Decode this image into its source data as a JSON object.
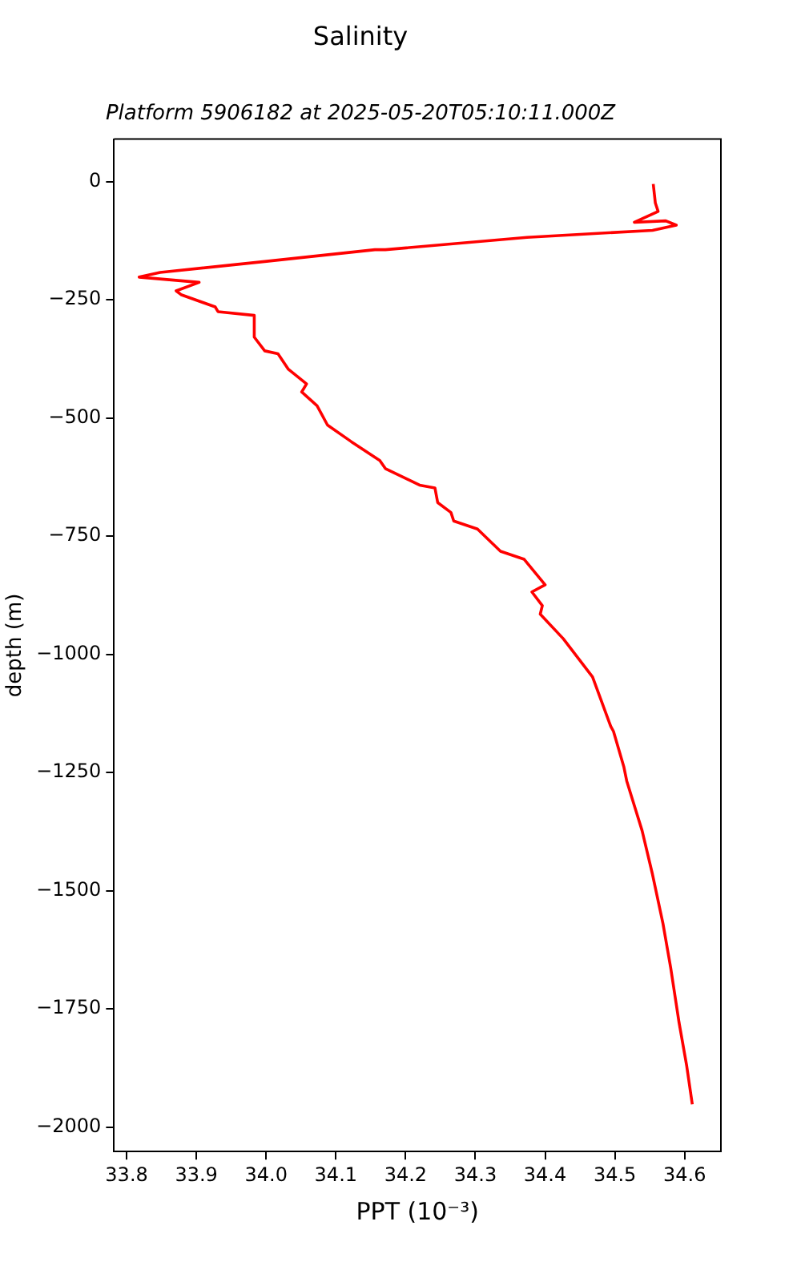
{
  "chart_data": {
    "type": "line",
    "title": "Salinity",
    "subtitle": "Platform 5906182 at 2025-05-20T05:10:11.000Z",
    "xlabel": "PPT (10⁻³)",
    "ylabel": "depth (m)",
    "series": [
      {
        "color": "#ff0000",
        "x": [
          34.555,
          34.558,
          34.562,
          34.528,
          34.573,
          34.588,
          34.554,
          34.374,
          34.171,
          34.156,
          33.998,
          33.848,
          33.818,
          33.904,
          33.871,
          33.878,
          33.927,
          33.931,
          33.983,
          33.983,
          33.998,
          34.017,
          34.032,
          34.058,
          34.051,
          34.073,
          34.088,
          34.122,
          34.163,
          34.171,
          34.22,
          34.242,
          34.246,
          34.265,
          34.269,
          34.303,
          34.336,
          34.37,
          34.4,
          34.381,
          34.396,
          34.393,
          34.426,
          34.468,
          34.494,
          34.498,
          34.513,
          34.517,
          34.539,
          34.554,
          34.569,
          34.58,
          34.592,
          34.603,
          34.611
        ],
        "values": [
          -5,
          -45,
          -63,
          -86,
          -83,
          -92,
          -103,
          -118,
          -144,
          -144,
          -169,
          -192,
          -202,
          -213,
          -231,
          -239,
          -265,
          -275,
          -283,
          -329,
          -358,
          -364,
          -397,
          -428,
          -445,
          -474,
          -515,
          -550,
          -590,
          -607,
          -642,
          -648,
          -679,
          -700,
          -718,
          -735,
          -782,
          -799,
          -853,
          -868,
          -897,
          -915,
          -967,
          -1048,
          -1152,
          -1163,
          -1239,
          -1268,
          -1373,
          -1466,
          -1570,
          -1663,
          -1779,
          -1871,
          -1952
        ]
      }
    ],
    "xlim": [
      33.782,
      34.652
    ],
    "ylim": [
      -2052,
      90
    ],
    "xticks": [
      33.8,
      33.9,
      {
        "value": 34,
        "label": "34.0"
      },
      34.1,
      34.2,
      34.3,
      34.4,
      34.5,
      34.6
    ],
    "yticks": [
      -2000,
      -1750,
      -1500,
      -1250,
      -1000,
      -750,
      -500,
      -250,
      0
    ],
    "grid": false,
    "legend": false,
    "line_style": "solid",
    "marker": "none"
  }
}
